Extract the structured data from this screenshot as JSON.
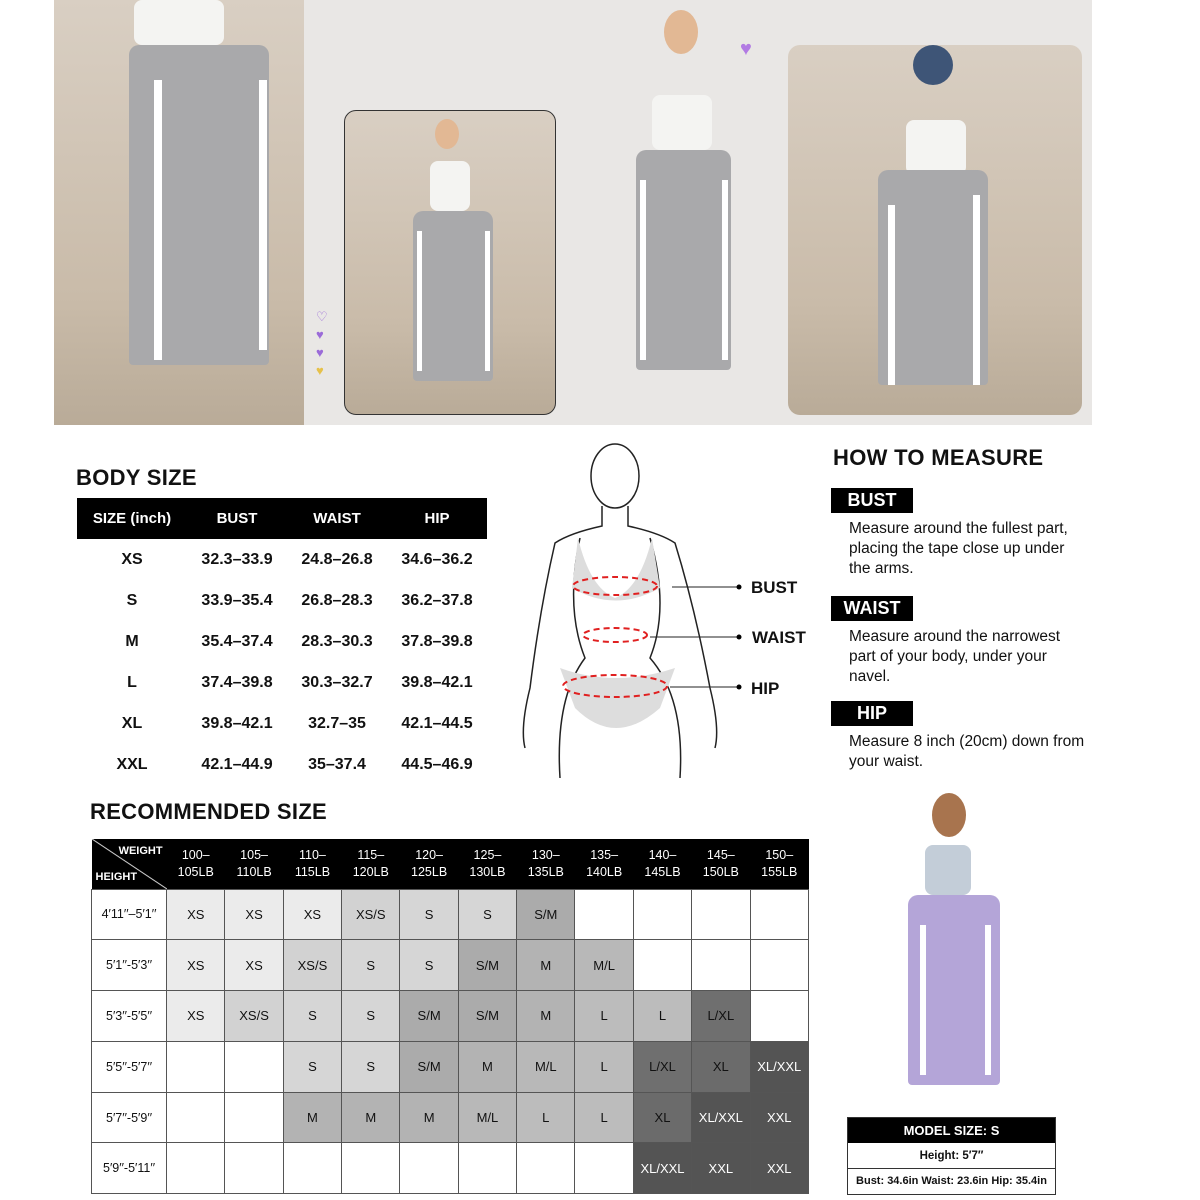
{
  "body_size": {
    "title": "BODY SIZE",
    "headers": [
      "SIZE (inch)",
      "BUST",
      "WAIST",
      "HIP"
    ],
    "rows": [
      [
        "XS",
        "32.3–33.9",
        "24.8–26.8",
        "34.6–36.2"
      ],
      [
        "S",
        "33.9–35.4",
        "26.8–28.3",
        "36.2–37.8"
      ],
      [
        "M",
        "35.4–37.4",
        "28.3–30.3",
        "37.8–39.8"
      ],
      [
        "L",
        "37.4–39.8",
        "30.3–32.7",
        "39.8–42.1"
      ],
      [
        "XL",
        "39.8–42.1",
        "32.7–35",
        "42.1–44.5"
      ],
      [
        "XXL",
        "42.1–44.9",
        "35–37.4",
        "44.5–46.9"
      ]
    ]
  },
  "diagram": {
    "labels": [
      "BUST",
      "WAIST",
      "HIP"
    ],
    "accent": "#e02020"
  },
  "how_to_measure": {
    "title": "HOW TO MEASURE",
    "items": [
      {
        "tag": "BUST",
        "text": "Measure around the fullest part, placing the tape close up under the arms."
      },
      {
        "tag": "WAIST",
        "text": "Measure around the narrowest part of your body, under your navel."
      },
      {
        "tag": "HIP",
        "text": "Measure 8 inch (20cm) down from your waist."
      }
    ]
  },
  "recommended": {
    "title": "RECOMMENDED SIZE",
    "corner_top": "WEIGHT",
    "corner_bottom": "HEIGHT",
    "weights": [
      [
        "100–",
        "105LB"
      ],
      [
        "105–",
        "110LB"
      ],
      [
        "110–",
        "115LB"
      ],
      [
        "115–",
        "120LB"
      ],
      [
        "120–",
        "125LB"
      ],
      [
        "125–",
        "130LB"
      ],
      [
        "130–",
        "135LB"
      ],
      [
        "135–",
        "140LB"
      ],
      [
        "140–",
        "145LB"
      ],
      [
        "145–",
        "150LB"
      ],
      [
        "150–",
        "155LB"
      ]
    ],
    "rows": [
      {
        "height": "4′11′′–5′1′′",
        "sizes": [
          "XS",
          "XS",
          "XS",
          "XS/S",
          "S",
          "S",
          "S/M",
          "",
          "",
          "",
          ""
        ]
      },
      {
        "height": "5′1′′-5′3′′",
        "sizes": [
          "XS",
          "XS",
          "XS/S",
          "S",
          "S",
          "S/M",
          "M",
          "M/L",
          "",
          "",
          ""
        ]
      },
      {
        "height": "5′3′′-5′5′′",
        "sizes": [
          "XS",
          "XS/S",
          "S",
          "S",
          "S/M",
          "S/M",
          "M",
          "L",
          "L",
          "L/XL",
          ""
        ]
      },
      {
        "height": "5′5′′-5′7′′",
        "sizes": [
          "",
          "",
          "S",
          "S",
          "S/M",
          "M",
          "M/L",
          "L",
          "L/XL",
          "XL",
          "XL/XXL"
        ]
      },
      {
        "height": "5′7′′-5′9′′",
        "sizes": [
          "",
          "",
          "M",
          "M",
          "M",
          "M/L",
          "L",
          "L",
          "XL",
          "XL/XXL",
          "XXL"
        ]
      },
      {
        "height": "5′9′′-5′11′′",
        "sizes": [
          "",
          "",
          "",
          "",
          "",
          "",
          "",
          "",
          "XL/XXL",
          "XXL",
          "XXL"
        ]
      }
    ],
    "shades": {
      "XS": "#ebebeb",
      "XS/S": "#d2d2d2",
      "S": "#d6d6d6",
      "S/M": "#ababab",
      "M": "#b3b3b3",
      "M/L": "#b8b8b8",
      "L": "#bcbcbc",
      "L/XL": "#6f6f6f",
      "XL": "#6b6b6b",
      "XL/XXL": "#545454",
      "XXL": "#545454"
    }
  },
  "model": {
    "title": "MODEL SIZE: S",
    "height": "Height: 5′7′′",
    "measurements": "Bust: 34.6in Waist: 23.6in Hip: 35.4in"
  }
}
